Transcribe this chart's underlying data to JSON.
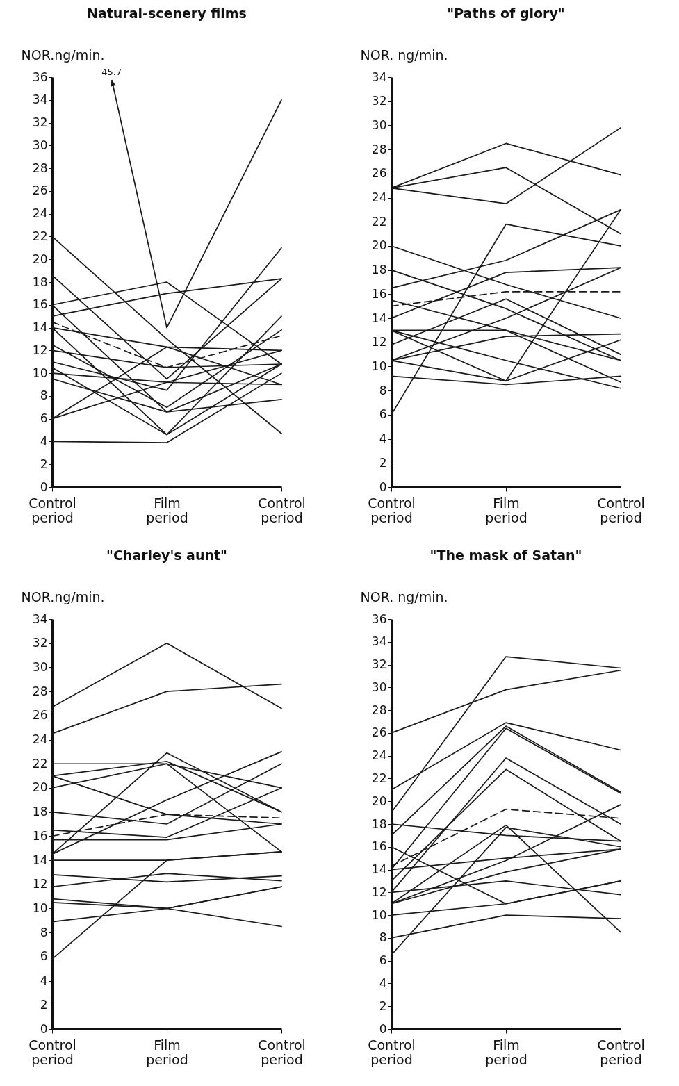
{
  "chart_data": [
    {
      "type": "line",
      "title": "Natural-scenery films",
      "ylabel": "NOR.ng/min.",
      "categories": [
        "Control period",
        "Film period",
        "Control period"
      ],
      "ylim": [
        0,
        36
      ],
      "yticks": [
        0,
        2,
        4,
        6,
        8,
        10,
        12,
        14,
        16,
        18,
        20,
        22,
        24,
        26,
        28,
        30,
        32,
        34,
        36
      ],
      "line_style": "solid",
      "annotations": [
        "45.7"
      ],
      "series": [
        {
          "color": "#1a1a1a",
          "values": [
            22,
            13,
            4.7
          ]
        },
        {
          "color": "#1a1a1a",
          "values": [
            null,
            14,
            34
          ]
        },
        {
          "color": "#1a1a1a",
          "values": [
            16,
            18,
            10.8
          ]
        },
        {
          "color": "#1a1a1a",
          "values": [
            15,
            17,
            18.3
          ]
        },
        {
          "color": "#1a1a1a",
          "values": [
            14,
            12.3,
            12
          ]
        },
        {
          "color": "#1a1a1a",
          "values": [
            18.6,
            9.5,
            18.3
          ]
        },
        {
          "color": "#1a1a1a",
          "values": [
            16,
            6.6,
            10.8
          ]
        },
        {
          "color": "#1a1a1a",
          "values": [
            14,
            4.6,
            10.8
          ]
        },
        {
          "color": "#1a1a1a",
          "values": [
            12.5,
            7,
            13.8
          ]
        },
        {
          "color": "#1a1a1a",
          "values": [
            6,
            9.2,
            12
          ]
        },
        {
          "color": "#1a1a1a",
          "values": [
            10,
            9.2,
            9
          ]
        },
        {
          "color": "#1a1a1a",
          "values": [
            9.5,
            6.6,
            7.7
          ]
        },
        {
          "color": "#1a1a1a",
          "values": [
            4,
            3.9,
            10
          ]
        },
        {
          "color": "#1a1a1a",
          "values": [
            10.5,
            4.6,
            15
          ]
        },
        {
          "color": "#1a1a1a",
          "values": [
            11,
            8.5,
            21
          ]
        },
        {
          "color": "#1a1a1a",
          "values": [
            12,
            10.5,
            10.8
          ]
        },
        {
          "color": "#1a1a1a",
          "values": [
            6,
            12.3,
            9
          ]
        },
        {
          "color": "#1a1a1a",
          "values": [
            14.5,
            10.5,
            13.3
          ],
          "line_style": "dashed"
        }
      ]
    },
    {
      "type": "line",
      "title": "\"Paths of glory\"",
      "ylabel": "NOR. ng/min.",
      "categories": [
        "Control period",
        "Film period",
        "Control period"
      ],
      "ylim": [
        0,
        34
      ],
      "yticks": [
        0,
        2,
        4,
        6,
        8,
        10,
        12,
        14,
        16,
        18,
        20,
        22,
        24,
        26,
        28,
        30,
        32,
        34
      ],
      "line_style": "solid",
      "series": [
        {
          "color": "#1a1a1a",
          "values": [
            24.8,
            28.5,
            25.9
          ]
        },
        {
          "color": "#1a1a1a",
          "values": [
            24.8,
            26.5,
            21
          ]
        },
        {
          "color": "#1a1a1a",
          "values": [
            24.8,
            23.5,
            29.8
          ]
        },
        {
          "color": "#1a1a1a",
          "values": [
            20,
            16.8,
            14
          ]
        },
        {
          "color": "#1a1a1a",
          "values": [
            6,
            21.8,
            20
          ]
        },
        {
          "color": "#1a1a1a",
          "values": [
            16.5,
            18.8,
            23
          ]
        },
        {
          "color": "#1a1a1a",
          "values": [
            18,
            14.8,
            10.5
          ]
        },
        {
          "color": "#1a1a1a",
          "values": [
            14,
            17.8,
            18.2
          ]
        },
        {
          "color": "#1a1a1a",
          "values": [
            13,
            13,
            10.5
          ]
        },
        {
          "color": "#1a1a1a",
          "values": [
            13,
            10.5,
            8.2
          ]
        },
        {
          "color": "#1a1a1a",
          "values": [
            13,
            8.8,
            23
          ]
        },
        {
          "color": "#1a1a1a",
          "values": [
            11.8,
            15.6,
            11
          ]
        },
        {
          "color": "#1a1a1a",
          "values": [
            10.5,
            12.5,
            12.7
          ]
        },
        {
          "color": "#1a1a1a",
          "values": [
            10.5,
            14,
            18.2
          ]
        },
        {
          "color": "#1a1a1a",
          "values": [
            9.2,
            8.5,
            9.2
          ]
        },
        {
          "color": "#1a1a1a",
          "values": [
            15.5,
            13,
            8.7
          ]
        },
        {
          "color": "#1a1a1a",
          "values": [
            10.5,
            8.8,
            12.2
          ]
        },
        {
          "color": "#1a1a1a",
          "values": [
            15,
            16.2,
            16.2
          ],
          "line_style": "dashed"
        }
      ]
    },
    {
      "type": "line",
      "title": "\"Charley's aunt\"",
      "ylabel": "NOR.ng/min.",
      "categories": [
        "Control period",
        "Film period",
        "Control period"
      ],
      "ylim": [
        0,
        34
      ],
      "yticks": [
        0,
        2,
        4,
        6,
        8,
        10,
        12,
        14,
        16,
        18,
        20,
        22,
        24,
        26,
        28,
        30,
        32,
        34
      ],
      "line_style": "solid",
      "series": [
        {
          "color": "#1a1a1a",
          "values": [
            26.7,
            32,
            26.6
          ]
        },
        {
          "color": "#1a1a1a",
          "values": [
            24.5,
            28,
            28.6
          ]
        },
        {
          "color": "#1a1a1a",
          "values": [
            22,
            22,
            20
          ]
        },
        {
          "color": "#1a1a1a",
          "values": [
            21,
            22.2,
            18
          ]
        },
        {
          "color": "#1a1a1a",
          "values": [
            21,
            17.8,
            17
          ]
        },
        {
          "color": "#1a1a1a",
          "values": [
            20,
            22,
            14.7
          ]
        },
        {
          "color": "#1a1a1a",
          "values": [
            14.5,
            22.9,
            18
          ]
        },
        {
          "color": "#1a1a1a",
          "values": [
            14.5,
            19,
            23
          ]
        },
        {
          "color": "#1a1a1a",
          "values": [
            18,
            17,
            22
          ]
        },
        {
          "color": "#1a1a1a",
          "values": [
            16.5,
            15.9,
            20
          ]
        },
        {
          "color": "#1a1a1a",
          "values": [
            15.7,
            15.7,
            17
          ]
        },
        {
          "color": "#1a1a1a",
          "values": [
            14,
            14,
            14.7
          ]
        },
        {
          "color": "#1a1a1a",
          "values": [
            12.8,
            12.2,
            12.7
          ]
        },
        {
          "color": "#1a1a1a",
          "values": [
            11.8,
            12.9,
            12.3
          ]
        },
        {
          "color": "#1a1a1a",
          "values": [
            10.5,
            10,
            11.8
          ]
        },
        {
          "color": "#1a1a1a",
          "values": [
            10.8,
            10,
            8.5
          ]
        },
        {
          "color": "#1a1a1a",
          "values": [
            8.9,
            10,
            11.8
          ]
        },
        {
          "color": "#1a1a1a",
          "values": [
            5.8,
            14,
            14.7
          ]
        },
        {
          "color": "#1a1a1a",
          "values": [
            16,
            17.8,
            17.5
          ],
          "line_style": "dashed"
        }
      ]
    },
    {
      "type": "line",
      "title": "\"The mask of Satan\"",
      "ylabel": "NOR. ng/min.",
      "categories": [
        "Control period",
        "Film period",
        "Control period"
      ],
      "ylim": [
        0,
        36
      ],
      "yticks": [
        0,
        2,
        4,
        6,
        8,
        10,
        12,
        14,
        16,
        18,
        20,
        22,
        24,
        26,
        28,
        30,
        32,
        34,
        36
      ],
      "line_style": "solid",
      "series": [
        {
          "color": "#1a1a1a",
          "values": [
            26,
            29.8,
            31.5
          ]
        },
        {
          "color": "#1a1a1a",
          "values": [
            19,
            32.7,
            31.7
          ]
        },
        {
          "color": "#1a1a1a",
          "values": [
            21,
            26.9,
            24.5
          ]
        },
        {
          "color": "#1a1a1a",
          "values": [
            17,
            26.6,
            20.8
          ]
        },
        {
          "color": "#1a1a1a",
          "values": [
            14,
            26.4,
            20.7
          ]
        },
        {
          "color": "#1a1a1a",
          "values": [
            12,
            23.8,
            18
          ]
        },
        {
          "color": "#1a1a1a",
          "values": [
            13,
            22.8,
            16.5
          ]
        },
        {
          "color": "#1a1a1a",
          "values": [
            18,
            17,
            16.5
          ]
        },
        {
          "color": "#1a1a1a",
          "values": [
            16,
            11,
            13
          ]
        },
        {
          "color": "#1a1a1a",
          "values": [
            14,
            15,
            15.8
          ]
        },
        {
          "color": "#1a1a1a",
          "values": [
            11,
            17.9,
            8.5
          ]
        },
        {
          "color": "#1a1a1a",
          "values": [
            6.5,
            17.7,
            16
          ]
        },
        {
          "color": "#1a1a1a",
          "values": [
            11,
            14.8,
            19.7
          ]
        },
        {
          "color": "#1a1a1a",
          "values": [
            11,
            13.8,
            15.8
          ]
        },
        {
          "color": "#1a1a1a",
          "values": [
            12,
            13,
            11.8
          ]
        },
        {
          "color": "#1a1a1a",
          "values": [
            10,
            11,
            13
          ]
        },
        {
          "color": "#1a1a1a",
          "values": [
            8,
            10,
            9.7
          ]
        },
        {
          "color": "#1a1a1a",
          "values": [
            14.3,
            19.3,
            18.5
          ],
          "line_style": "dashed"
        }
      ]
    }
  ]
}
